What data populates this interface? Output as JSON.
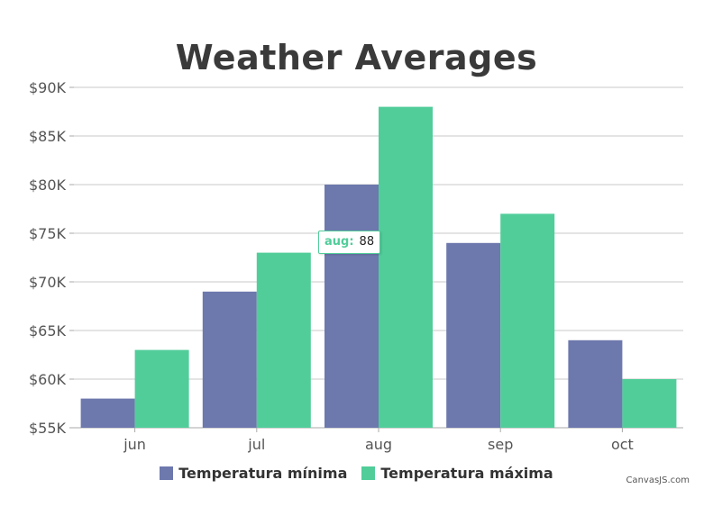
{
  "chart_data": {
    "type": "bar",
    "title": "Weather Averages",
    "categories": [
      "jun",
      "jul",
      "aug",
      "sep",
      "oct"
    ],
    "series": [
      {
        "name": "Temperatura mínima",
        "values": [
          58,
          69,
          80,
          74,
          64
        ],
        "color": "#6d78ad"
      },
      {
        "name": "Temperatura máxima",
        "values": [
          63,
          73,
          88,
          77,
          60
        ],
        "color": "#51cd9a"
      }
    ],
    "ylim": [
      55,
      90
    ],
    "yticks": [
      55,
      60,
      65,
      70,
      75,
      80,
      85,
      90
    ],
    "ytick_labels": [
      "$55K",
      "$60K",
      "$65K",
      "$70K",
      "$75K",
      "$80K",
      "$85K",
      "$90K"
    ],
    "grid": true,
    "legend_position": "bottom",
    "tooltip": {
      "label": "aug:",
      "value": "88"
    }
  },
  "credit": "CanvasJS.com"
}
